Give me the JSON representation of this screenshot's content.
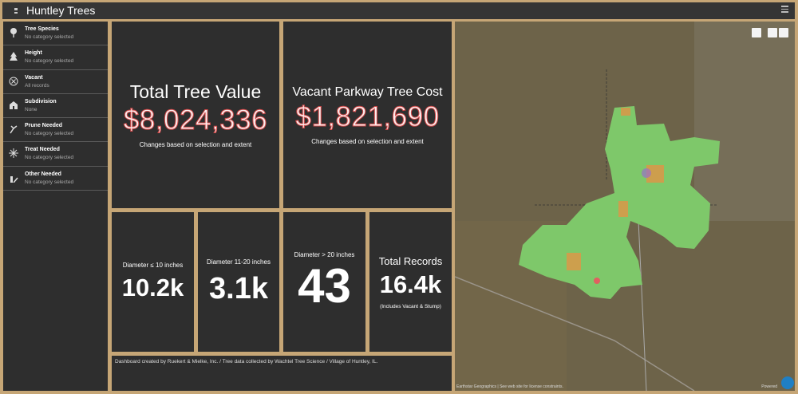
{
  "header": {
    "title": "Huntley Trees"
  },
  "filters": [
    {
      "title": "Tree Species",
      "subtitle": "No category selected"
    },
    {
      "title": "Height",
      "subtitle": "No category selected"
    },
    {
      "title": "Vacant",
      "subtitle": "All records"
    },
    {
      "title": "Subdivision",
      "subtitle": "None"
    },
    {
      "title": "Prune Needed",
      "subtitle": "No category selected"
    },
    {
      "title": "Treat Needed",
      "subtitle": "No category selected"
    },
    {
      "title": "Other Needed",
      "subtitle": "No category selected"
    }
  ],
  "indicators": [
    {
      "title": "Total Tree Value",
      "value": "$8,024,336",
      "subtitle": "Changes based on selection and extent"
    },
    {
      "title": "Vacant Parkway Tree Cost",
      "value": "$1,821,690",
      "subtitle": "Changes based on selection and extent"
    },
    {
      "title": "Diameter ≤ 10 inches",
      "value": "10.2k"
    },
    {
      "title": "Diameter 11-20 inches",
      "value": "3.1k"
    },
    {
      "title": "Diameter > 20 inches",
      "value": "43"
    },
    {
      "title": "Total Records",
      "value": "16.4k",
      "subtitle": "(Includes Vacant & Stump)"
    }
  ],
  "footer": "Dashboard created by Ruekert & Mielke, Inc. / Tree data collected by Wachtel Tree Science / Village of Huntley, IL.",
  "map": {
    "attribution": "Earthstar Geographics | See web site for license constraints.",
    "powered": "Powered"
  }
}
